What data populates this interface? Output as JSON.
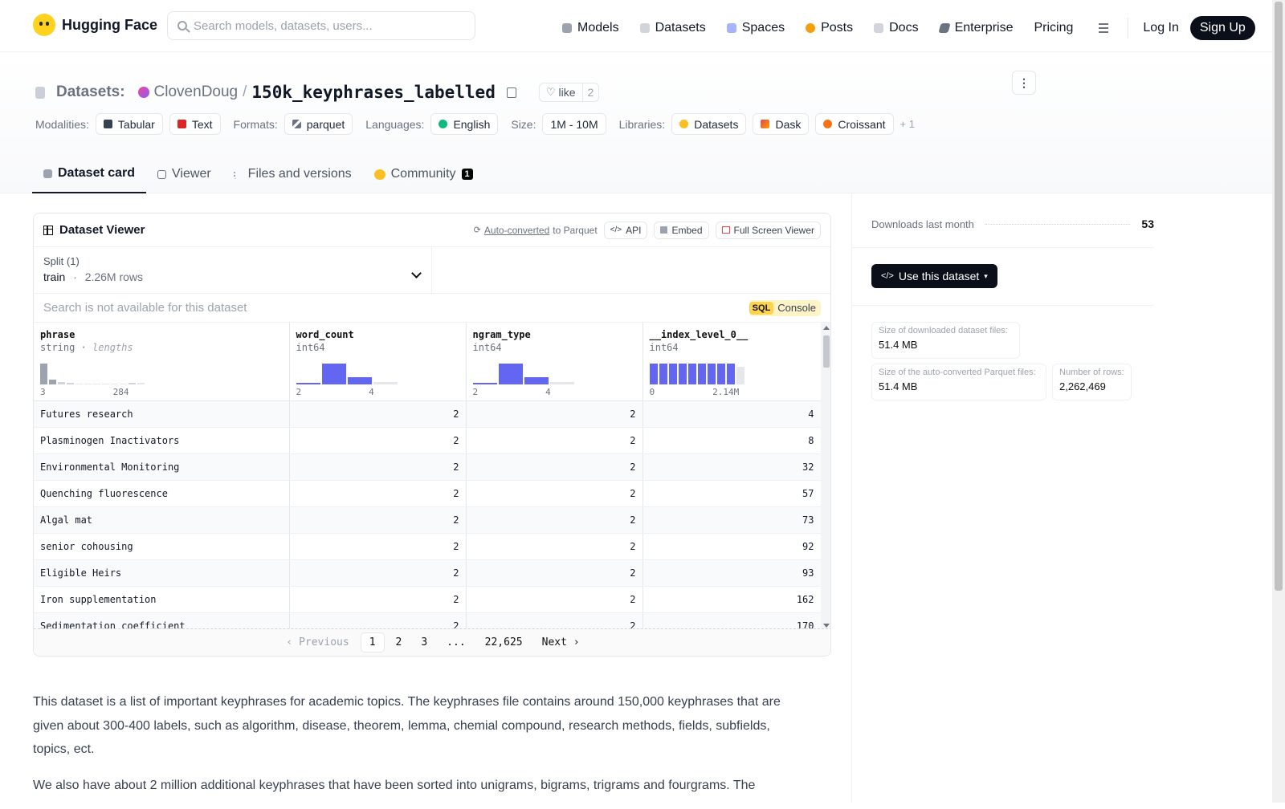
{
  "nav": {
    "brand": "Hugging Face",
    "search_placeholder": "Search models, datasets, users...",
    "links": [
      "Models",
      "Datasets",
      "Spaces",
      "Posts",
      "Docs",
      "Enterprise",
      "Pricing"
    ],
    "login": "Log In",
    "signup": "Sign Up"
  },
  "header": {
    "section": "Datasets:",
    "owner": "ClovenDoug",
    "separator": "/",
    "name": "150k_keyphrases_labelled",
    "like_label": "like",
    "like_count": "2",
    "modalities_label": "Modalities:",
    "modalities": [
      "Tabular",
      "Text"
    ],
    "formats_label": "Formats:",
    "formats": [
      "parquet"
    ],
    "languages_label": "Languages:",
    "languages": [
      "English"
    ],
    "size_label": "Size:",
    "size": "1M - 10M",
    "libraries_label": "Libraries:",
    "libraries": [
      "Datasets",
      "Dask",
      "Croissant"
    ],
    "libraries_more": "+ 1"
  },
  "tabs": [
    {
      "label": "Dataset card",
      "active": true
    },
    {
      "label": "Viewer"
    },
    {
      "label": "Files and versions"
    },
    {
      "label": "Community",
      "badge": "1"
    }
  ],
  "viewer": {
    "title": "Dataset Viewer",
    "auto_converted": "Auto-converted",
    "to_parquet": "to Parquet",
    "api": "API",
    "embed": "Embed",
    "full_screen": "Full Screen Viewer",
    "split_label": "Split (1)",
    "split_name": "train",
    "split_dot": "·",
    "split_rows": "2.26M rows",
    "search_placeholder": "Search is not available for this dataset",
    "sql_label": "SQL",
    "console_label": "Console",
    "columns": [
      {
        "name": "phrase",
        "type": "string",
        "subtype": "lengths",
        "range_min": "3",
        "range_max": "284"
      },
      {
        "name": "word_count",
        "type": "int64",
        "range_min": "2",
        "range_max": "4"
      },
      {
        "name": "ngram_type",
        "type": "int64",
        "range_min": "2",
        "range_max": "4"
      },
      {
        "name": "__index_level_0__",
        "type": "int64",
        "range_min": "0",
        "range_max": "2.14M"
      }
    ],
    "rows": [
      {
        "phrase": "Futures research",
        "word_count": "2",
        "ngram_type": "2",
        "index": "4"
      },
      {
        "phrase": "Plasminogen Inactivators",
        "word_count": "2",
        "ngram_type": "2",
        "index": "8"
      },
      {
        "phrase": "Environmental Monitoring",
        "word_count": "2",
        "ngram_type": "2",
        "index": "32"
      },
      {
        "phrase": "Quenching fluorescence",
        "word_count": "2",
        "ngram_type": "2",
        "index": "57"
      },
      {
        "phrase": "Algal mat",
        "word_count": "2",
        "ngram_type": "2",
        "index": "73"
      },
      {
        "phrase": "senior cohousing",
        "word_count": "2",
        "ngram_type": "2",
        "index": "92"
      },
      {
        "phrase": "Eligible Heirs",
        "word_count": "2",
        "ngram_type": "2",
        "index": "93"
      },
      {
        "phrase": "Iron supplementation",
        "word_count": "2",
        "ngram_type": "2",
        "index": "162"
      },
      {
        "phrase": "Sedimentation coefficient",
        "word_count": "2",
        "ngram_type": "2",
        "index": "170"
      }
    ],
    "pager": {
      "prev": "Previous",
      "pages": [
        "1",
        "2",
        "3",
        "...",
        "22,625"
      ],
      "next": "Next"
    }
  },
  "description": [
    "This dataset is a list of important keyphrases for academic topics. The keyphrases file contains around 150,000 keyphrases that are given about 300-400 labels, such as algorithm, disease, theorem, lemma, chemial compound, research methods, fields, subfields, topics, ect.",
    "We also have about 2 million additional keyphrases that have been sorted into unigrams, bigrams, trigrams and fourgrams. The"
  ],
  "sidebar": {
    "downloads_label": "Downloads last month",
    "downloads_value": "53",
    "use_button": "Use this dataset",
    "more_button": "⋮",
    "size_downloaded_label": "Size of downloaded dataset files:",
    "size_downloaded_value": "51.4 MB",
    "size_parquet_label": "Size of the auto-converted Parquet files:",
    "size_parquet_value": "51.4 MB",
    "num_rows_label": "Number of rows:",
    "num_rows_value": "2,262,469"
  }
}
